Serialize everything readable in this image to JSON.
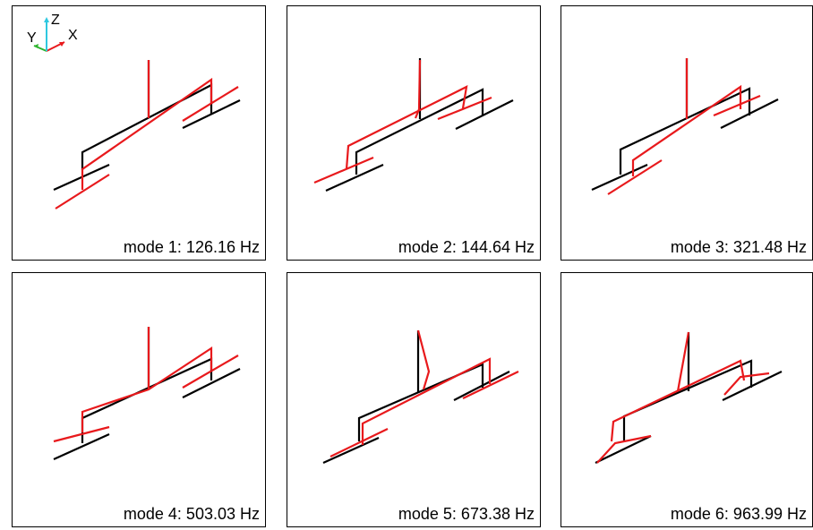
{
  "panels": [
    {
      "caption": "mode 1: 126.16 Hz"
    },
    {
      "caption": "mode 2: 144.64 Hz"
    },
    {
      "caption": "mode 3: 321.48 Hz"
    },
    {
      "caption": "mode 4: 503.03 Hz"
    },
    {
      "caption": "mode 5: 673.38 Hz"
    },
    {
      "caption": "mode 6: 963.99 Hz"
    }
  ],
  "triad": {
    "x": "X",
    "y": "Y",
    "z": "Z"
  },
  "colors": {
    "undeformed": "#000000",
    "deformed": "#e8191c",
    "axis_x": "#e8191c",
    "axis_y": "#2fb52f",
    "axis_z": "#2ec8e0"
  }
}
